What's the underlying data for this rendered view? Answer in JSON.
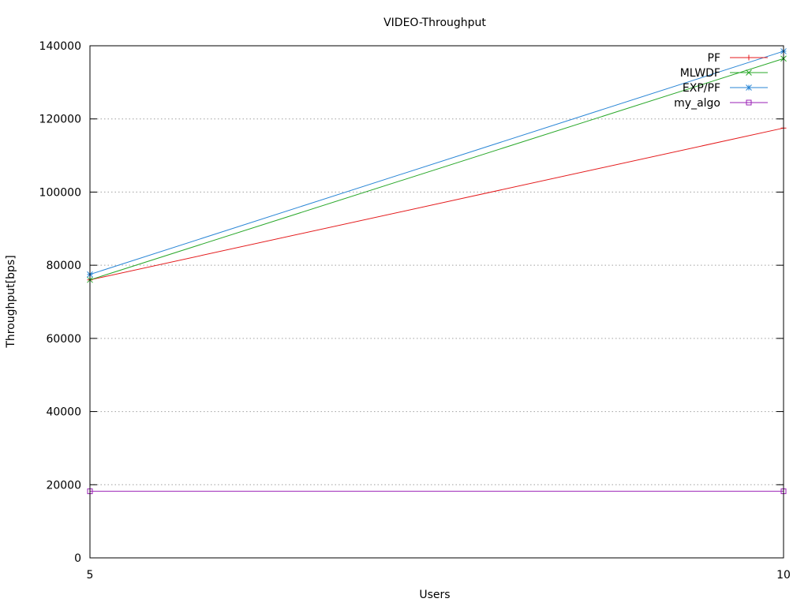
{
  "chart_data": {
    "type": "line",
    "title": "VIDEO-Throughput",
    "xlabel": "Users",
    "ylabel": "Throughput[bps]",
    "xlim": [
      5,
      10
    ],
    "ylim": [
      0,
      140000
    ],
    "xticks": [
      5,
      10
    ],
    "yticks": [
      0,
      20000,
      40000,
      60000,
      80000,
      100000,
      120000,
      140000
    ],
    "grid": "horizontal dotted",
    "legend_position": "top-right",
    "x": [
      5,
      10
    ],
    "series": [
      {
        "name": "PF",
        "values": [
          76000,
          117500
        ],
        "color": "#e41a1c",
        "marker": "plus"
      },
      {
        "name": "MLWDF",
        "values": [
          76000,
          136500
        ],
        "color": "#2aa82a",
        "marker": "cross"
      },
      {
        "name": "EXP/PF",
        "values": [
          77500,
          138500
        ],
        "color": "#2a86d6",
        "marker": "star"
      },
      {
        "name": "my_algo",
        "values": [
          18200,
          18200
        ],
        "color": "#9a1fb5",
        "marker": "square"
      }
    ]
  }
}
